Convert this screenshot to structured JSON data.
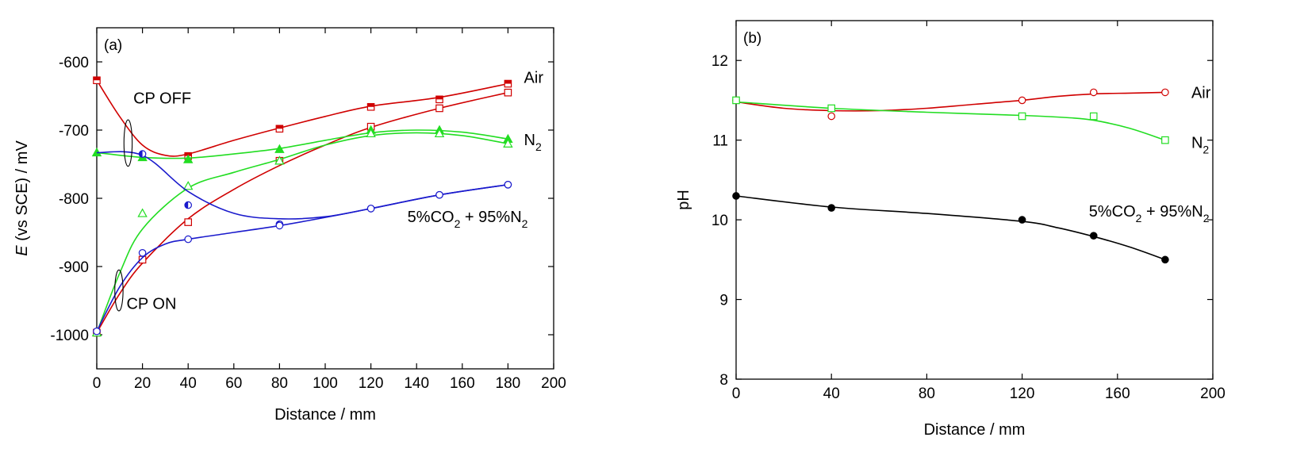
{
  "chart_data": [
    {
      "type": "line",
      "panel_label": "(a)",
      "xlabel": "Distance / mm",
      "ylabel_italic": "E",
      "ylabel_rest": " (vs SCE) / mV",
      "xlim": [
        0,
        200
      ],
      "ylim": [
        -1050,
        -550
      ],
      "xticks": [
        0,
        20,
        40,
        60,
        80,
        100,
        120,
        140,
        160,
        180,
        200
      ],
      "yticks": [
        -1000,
        -900,
        -800,
        -700,
        -600
      ],
      "grid": false,
      "legend": "none (inline labels)",
      "series": [
        {
          "name": "Air",
          "condition": "CP OFF",
          "color": "#d00000",
          "marker": "square",
          "fill": "half-top",
          "x": [
            0,
            40,
            80,
            120,
            150,
            180
          ],
          "y": [
            -627,
            -738,
            -698,
            -666,
            -655,
            -632
          ],
          "curve": [
            [
              0,
              -627
            ],
            [
              10,
              -680
            ],
            [
              20,
              -722
            ],
            [
              30,
              -737
            ],
            [
              40,
              -735
            ],
            [
              60,
              -715
            ],
            [
              80,
              -697
            ],
            [
              100,
              -680
            ],
            [
              120,
              -665
            ],
            [
              150,
              -652
            ],
            [
              180,
              -632
            ]
          ]
        },
        {
          "name": "Air",
          "condition": "CP ON",
          "color": "#d00000",
          "marker": "square",
          "fill": "open",
          "x": [
            0,
            20,
            40,
            80,
            120,
            150,
            180
          ],
          "y": [
            -997,
            -890,
            -835,
            -745,
            -695,
            -668,
            -645
          ],
          "curve": [
            [
              0,
              -997
            ],
            [
              10,
              -940
            ],
            [
              20,
              -895
            ],
            [
              40,
              -830
            ],
            [
              60,
              -787
            ],
            [
              80,
              -752
            ],
            [
              100,
              -722
            ],
            [
              120,
              -696
            ],
            [
              150,
              -668
            ],
            [
              180,
              -645
            ]
          ]
        },
        {
          "name": "N2",
          "condition": "CP OFF",
          "color": "#22dd22",
          "marker": "triangle",
          "fill": "filled",
          "x": [
            0,
            20,
            40,
            80,
            120,
            150,
            180
          ],
          "y": [
            -733,
            -740,
            -743,
            -728,
            -700,
            -700,
            -713
          ],
          "curve": [
            [
              0,
              -733
            ],
            [
              20,
              -740
            ],
            [
              40,
              -741
            ],
            [
              60,
              -735
            ],
            [
              80,
              -727
            ],
            [
              100,
              -715
            ],
            [
              120,
              -704
            ],
            [
              140,
              -700
            ],
            [
              160,
              -703
            ],
            [
              180,
              -713
            ]
          ]
        },
        {
          "name": "N2",
          "condition": "CP ON",
          "color": "#22dd22",
          "marker": "triangle",
          "fill": "open",
          "x": [
            0,
            20,
            40,
            80,
            120,
            150,
            180
          ],
          "y": [
            -997,
            -822,
            -782,
            -745,
            -705,
            -705,
            -720
          ],
          "curve": [
            [
              0,
              -997
            ],
            [
              10,
              -910
            ],
            [
              20,
              -845
            ],
            [
              40,
              -785
            ],
            [
              60,
              -762
            ],
            [
              80,
              -743
            ],
            [
              100,
              -722
            ],
            [
              120,
              -708
            ],
            [
              140,
              -704
            ],
            [
              160,
              -708
            ],
            [
              180,
              -720
            ]
          ]
        },
        {
          "name": "5%CO2 + 95%N2",
          "condition": "CP OFF",
          "color": "#1a1acc",
          "marker": "circle",
          "fill": "half-left",
          "x": [
            20,
            40,
            80,
            120,
            150,
            180
          ],
          "y": [
            -735,
            -810,
            -838,
            -815,
            -795,
            -780
          ],
          "curve": [
            [
              0,
              -733
            ],
            [
              20,
              -737
            ],
            [
              40,
              -790
            ],
            [
              60,
              -822
            ],
            [
              80,
              -830
            ],
            [
              100,
              -827
            ],
            [
              120,
              -815
            ],
            [
              150,
              -795
            ],
            [
              180,
              -780
            ]
          ]
        },
        {
          "name": "5%CO2 + 95%N2",
          "condition": "CP ON",
          "color": "#1a1acc",
          "marker": "circle",
          "fill": "open",
          "x": [
            0,
            20,
            40,
            80,
            120,
            150,
            180
          ],
          "y": [
            -995,
            -880,
            -860,
            -840,
            -815,
            -795,
            -780
          ],
          "curve": [
            [
              0,
              -995
            ],
            [
              10,
              -930
            ],
            [
              20,
              -887
            ],
            [
              30,
              -867
            ],
            [
              40,
              -860
            ],
            [
              60,
              -850
            ],
            [
              80,
              -840
            ],
            [
              100,
              -828
            ],
            [
              120,
              -815
            ],
            [
              150,
              -795
            ],
            [
              180,
              -780
            ]
          ]
        }
      ],
      "series_labels": [
        {
          "text": "Air",
          "x": 187,
          "y": -631
        },
        {
          "text": "N",
          "sub": "2",
          "x": 187,
          "y": -722
        },
        {
          "text": "5%CO",
          "sub": "2",
          "after": " + 95%N",
          "sub2": "2",
          "x": 136,
          "y": -835
        }
      ],
      "annotations": [
        {
          "text": "CP OFF",
          "x": 16,
          "y": -661
        },
        {
          "text": "CP ON",
          "x": 13,
          "y": -962
        }
      ],
      "ellipses": [
        {
          "cx": 13.7,
          "cy": -719,
          "rx": 1.8,
          "ry": 34
        },
        {
          "cx": 9.7,
          "cy": -935,
          "rx": 1.8,
          "ry": 30
        }
      ]
    },
    {
      "type": "line",
      "panel_label": "(b)",
      "xlabel": "Distance / mm",
      "ylabel": "pH",
      "xlim": [
        0,
        200
      ],
      "ylim": [
        8,
        12.5
      ],
      "xticks": [
        0,
        40,
        80,
        120,
        160,
        200
      ],
      "yticks": [
        8,
        9,
        10,
        11,
        12
      ],
      "grid": false,
      "legend": "none (inline labels)",
      "series": [
        {
          "name": "Air",
          "color": "#d00000",
          "marker": "circle",
          "fill": "open",
          "x": [
            0,
            40,
            120,
            150,
            180
          ],
          "y": [
            11.5,
            11.3,
            11.5,
            11.6,
            11.6
          ],
          "curve": [
            [
              0,
              11.48
            ],
            [
              20,
              11.4
            ],
            [
              40,
              11.37
            ],
            [
              60,
              11.37
            ],
            [
              80,
              11.4
            ],
            [
              100,
              11.45
            ],
            [
              120,
              11.5
            ],
            [
              135,
              11.55
            ],
            [
              150,
              11.58
            ],
            [
              165,
              11.59
            ],
            [
              180,
              11.6
            ]
          ]
        },
        {
          "name": "N2",
          "color": "#22dd22",
          "marker": "square",
          "fill": "open",
          "x": [
            0,
            40,
            120,
            150,
            180
          ],
          "y": [
            11.5,
            11.4,
            11.3,
            11.3,
            11.0
          ],
          "curve": [
            [
              0,
              11.48
            ],
            [
              40,
              11.4
            ],
            [
              80,
              11.35
            ],
            [
              120,
              11.31
            ],
            [
              140,
              11.28
            ],
            [
              150,
              11.25
            ],
            [
              165,
              11.15
            ],
            [
              180,
              11.0
            ]
          ]
        },
        {
          "name": "5%CO2 + 95%N2",
          "color": "#000000",
          "marker": "circle",
          "fill": "filled",
          "x": [
            0,
            40,
            120,
            150,
            180
          ],
          "y": [
            10.3,
            10.15,
            10.0,
            9.8,
            9.5
          ],
          "curve": [
            [
              0,
              10.3
            ],
            [
              40,
              10.16
            ],
            [
              80,
              10.08
            ],
            [
              120,
              9.98
            ],
            [
              135,
              9.9
            ],
            [
              150,
              9.79
            ],
            [
              165,
              9.66
            ],
            [
              180,
              9.5
            ]
          ]
        }
      ],
      "series_labels": [
        {
          "text": "Air",
          "x": 191,
          "y": 11.53
        },
        {
          "text": "N",
          "sub": "2",
          "x": 191,
          "y": 10.9
        },
        {
          "text": "5%CO",
          "sub": "2",
          "after": " + 95%N",
          "sub2": "2",
          "x": 148,
          "y": 10.04
        }
      ]
    }
  ]
}
